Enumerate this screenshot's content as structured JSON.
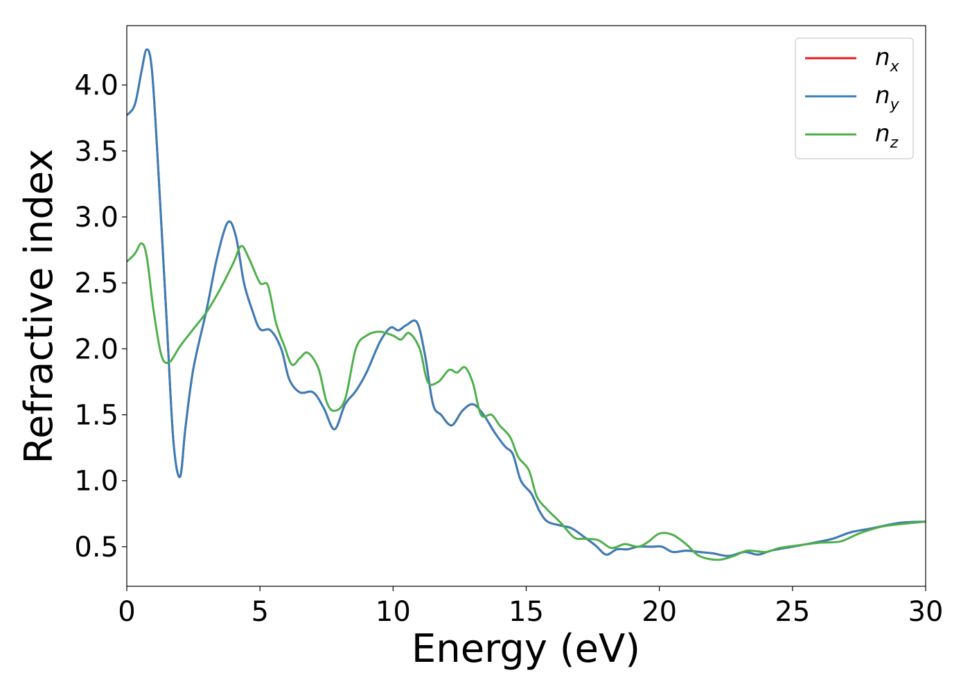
{
  "chart_data": {
    "type": "line",
    "xlabel": "Energy (eV)",
    "ylabel": "Refractive index",
    "xlim": [
      0,
      30
    ],
    "ylim": [
      0.2,
      4.45
    ],
    "xticks": [
      "0",
      "5",
      "10",
      "15",
      "20",
      "25",
      "30"
    ],
    "yticks": [
      "0.5",
      "1.0",
      "1.5",
      "2.0",
      "2.5",
      "3.0",
      "3.5",
      "4.0"
    ],
    "grid": false,
    "legend_position": "top-right",
    "series": [
      {
        "name": "n_x",
        "label_base": "n",
        "label_sub": "x",
        "color": "#e41a1c",
        "points": [
          [
            0,
            3.77
          ],
          [
            0.3,
            3.85
          ],
          [
            0.55,
            4.1
          ],
          [
            0.75,
            4.27
          ],
          [
            0.95,
            4.1
          ],
          [
            1.2,
            3.3
          ],
          [
            1.5,
            2.2
          ],
          [
            1.75,
            1.3
          ],
          [
            2.0,
            1.03
          ],
          [
            2.2,
            1.4
          ],
          [
            2.5,
            1.85
          ],
          [
            3.0,
            2.3
          ],
          [
            3.4,
            2.7
          ],
          [
            3.8,
            2.96
          ],
          [
            4.1,
            2.85
          ],
          [
            4.4,
            2.5
          ],
          [
            4.7,
            2.3
          ],
          [
            5.0,
            2.15
          ],
          [
            5.4,
            2.14
          ],
          [
            5.8,
            2.0
          ],
          [
            6.1,
            1.77
          ],
          [
            6.5,
            1.67
          ],
          [
            7.0,
            1.67
          ],
          [
            7.4,
            1.55
          ],
          [
            7.8,
            1.39
          ],
          [
            8.2,
            1.58
          ],
          [
            8.6,
            1.68
          ],
          [
            9.0,
            1.82
          ],
          [
            9.5,
            2.05
          ],
          [
            9.9,
            2.16
          ],
          [
            10.2,
            2.14
          ],
          [
            10.5,
            2.18
          ],
          [
            10.9,
            2.2
          ],
          [
            11.2,
            1.95
          ],
          [
            11.5,
            1.58
          ],
          [
            11.8,
            1.5
          ],
          [
            12.2,
            1.42
          ],
          [
            12.6,
            1.53
          ],
          [
            13.0,
            1.58
          ],
          [
            13.4,
            1.5
          ],
          [
            13.8,
            1.37
          ],
          [
            14.2,
            1.26
          ],
          [
            14.5,
            1.2
          ],
          [
            14.8,
            1.0
          ],
          [
            15.2,
            0.9
          ],
          [
            15.5,
            0.77
          ],
          [
            15.8,
            0.69
          ],
          [
            16.3,
            0.66
          ],
          [
            16.7,
            0.64
          ],
          [
            17.2,
            0.57
          ],
          [
            17.6,
            0.51
          ],
          [
            18.0,
            0.44
          ],
          [
            18.4,
            0.48
          ],
          [
            18.8,
            0.48
          ],
          [
            19.2,
            0.5
          ],
          [
            19.7,
            0.5
          ],
          [
            20.1,
            0.5
          ],
          [
            20.5,
            0.46
          ],
          [
            21.0,
            0.47
          ],
          [
            21.5,
            0.46
          ],
          [
            22.0,
            0.45
          ],
          [
            22.6,
            0.43
          ],
          [
            23.2,
            0.46
          ],
          [
            23.7,
            0.44
          ],
          [
            24.2,
            0.47
          ],
          [
            25.0,
            0.5
          ],
          [
            25.8,
            0.53
          ],
          [
            26.5,
            0.56
          ],
          [
            27.2,
            0.61
          ],
          [
            28.0,
            0.64
          ],
          [
            29.0,
            0.68
          ],
          [
            30.0,
            0.69
          ]
        ]
      },
      {
        "name": "n_y",
        "label_base": "n",
        "label_sub": "y",
        "color": "#377eb8",
        "points": [
          [
            0,
            3.77
          ],
          [
            0.3,
            3.85
          ],
          [
            0.55,
            4.1
          ],
          [
            0.75,
            4.27
          ],
          [
            0.95,
            4.1
          ],
          [
            1.2,
            3.3
          ],
          [
            1.5,
            2.2
          ],
          [
            1.75,
            1.3
          ],
          [
            2.0,
            1.03
          ],
          [
            2.2,
            1.4
          ],
          [
            2.5,
            1.85
          ],
          [
            3.0,
            2.3
          ],
          [
            3.4,
            2.7
          ],
          [
            3.8,
            2.96
          ],
          [
            4.1,
            2.85
          ],
          [
            4.4,
            2.5
          ],
          [
            4.7,
            2.3
          ],
          [
            5.0,
            2.15
          ],
          [
            5.4,
            2.14
          ],
          [
            5.8,
            2.0
          ],
          [
            6.1,
            1.77
          ],
          [
            6.5,
            1.67
          ],
          [
            7.0,
            1.67
          ],
          [
            7.4,
            1.55
          ],
          [
            7.8,
            1.39
          ],
          [
            8.2,
            1.58
          ],
          [
            8.6,
            1.68
          ],
          [
            9.0,
            1.82
          ],
          [
            9.5,
            2.05
          ],
          [
            9.9,
            2.16
          ],
          [
            10.2,
            2.14
          ],
          [
            10.5,
            2.18
          ],
          [
            10.9,
            2.2
          ],
          [
            11.2,
            1.95
          ],
          [
            11.5,
            1.58
          ],
          [
            11.8,
            1.5
          ],
          [
            12.2,
            1.42
          ],
          [
            12.6,
            1.53
          ],
          [
            13.0,
            1.58
          ],
          [
            13.4,
            1.5
          ],
          [
            13.8,
            1.37
          ],
          [
            14.2,
            1.26
          ],
          [
            14.5,
            1.2
          ],
          [
            14.8,
            1.0
          ],
          [
            15.2,
            0.9
          ],
          [
            15.5,
            0.77
          ],
          [
            15.8,
            0.69
          ],
          [
            16.3,
            0.66
          ],
          [
            16.7,
            0.64
          ],
          [
            17.2,
            0.57
          ],
          [
            17.6,
            0.51
          ],
          [
            18.0,
            0.44
          ],
          [
            18.4,
            0.48
          ],
          [
            18.8,
            0.48
          ],
          [
            19.2,
            0.5
          ],
          [
            19.7,
            0.5
          ],
          [
            20.1,
            0.5
          ],
          [
            20.5,
            0.46
          ],
          [
            21.0,
            0.47
          ],
          [
            21.5,
            0.46
          ],
          [
            22.0,
            0.45
          ],
          [
            22.6,
            0.43
          ],
          [
            23.2,
            0.46
          ],
          [
            23.7,
            0.44
          ],
          [
            24.2,
            0.47
          ],
          [
            25.0,
            0.5
          ],
          [
            25.8,
            0.53
          ],
          [
            26.5,
            0.56
          ],
          [
            27.2,
            0.61
          ],
          [
            28.0,
            0.64
          ],
          [
            29.0,
            0.68
          ],
          [
            30.0,
            0.69
          ]
        ]
      },
      {
        "name": "n_z",
        "label_base": "n",
        "label_sub": "z",
        "color": "#4daf4a",
        "points": [
          [
            0,
            2.66
          ],
          [
            0.3,
            2.72
          ],
          [
            0.55,
            2.8
          ],
          [
            0.75,
            2.7
          ],
          [
            1.0,
            2.3
          ],
          [
            1.3,
            1.95
          ],
          [
            1.6,
            1.9
          ],
          [
            2.0,
            2.02
          ],
          [
            2.5,
            2.15
          ],
          [
            3.0,
            2.28
          ],
          [
            3.5,
            2.45
          ],
          [
            4.0,
            2.65
          ],
          [
            4.3,
            2.78
          ],
          [
            4.6,
            2.68
          ],
          [
            5.0,
            2.5
          ],
          [
            5.3,
            2.48
          ],
          [
            5.6,
            2.2
          ],
          [
            5.9,
            2.03
          ],
          [
            6.2,
            1.88
          ],
          [
            6.5,
            1.93
          ],
          [
            6.8,
            1.97
          ],
          [
            7.2,
            1.85
          ],
          [
            7.5,
            1.6
          ],
          [
            7.8,
            1.53
          ],
          [
            8.2,
            1.62
          ],
          [
            8.6,
            2.0
          ],
          [
            9.0,
            2.1
          ],
          [
            9.5,
            2.13
          ],
          [
            10.0,
            2.1
          ],
          [
            10.3,
            2.07
          ],
          [
            10.6,
            2.12
          ],
          [
            11.0,
            2.0
          ],
          [
            11.3,
            1.75
          ],
          [
            11.7,
            1.75
          ],
          [
            12.1,
            1.84
          ],
          [
            12.4,
            1.82
          ],
          [
            12.7,
            1.86
          ],
          [
            13.0,
            1.74
          ],
          [
            13.3,
            1.5
          ],
          [
            13.7,
            1.5
          ],
          [
            14.0,
            1.42
          ],
          [
            14.4,
            1.33
          ],
          [
            14.7,
            1.18
          ],
          [
            15.1,
            1.08
          ],
          [
            15.4,
            0.88
          ],
          [
            15.8,
            0.78
          ],
          [
            16.3,
            0.68
          ],
          [
            16.8,
            0.57
          ],
          [
            17.2,
            0.56
          ],
          [
            17.7,
            0.55
          ],
          [
            18.2,
            0.49
          ],
          [
            18.7,
            0.52
          ],
          [
            19.2,
            0.5
          ],
          [
            19.6,
            0.54
          ],
          [
            20.0,
            0.6
          ],
          [
            20.5,
            0.59
          ],
          [
            21.0,
            0.52
          ],
          [
            21.5,
            0.43
          ],
          [
            22.2,
            0.4
          ],
          [
            22.8,
            0.43
          ],
          [
            23.3,
            0.47
          ],
          [
            24.0,
            0.46
          ],
          [
            24.5,
            0.49
          ],
          [
            25.2,
            0.51
          ],
          [
            26.0,
            0.53
          ],
          [
            26.8,
            0.54
          ],
          [
            27.5,
            0.6
          ],
          [
            28.3,
            0.65
          ],
          [
            29.0,
            0.67
          ],
          [
            30.0,
            0.69
          ]
        ]
      }
    ]
  }
}
